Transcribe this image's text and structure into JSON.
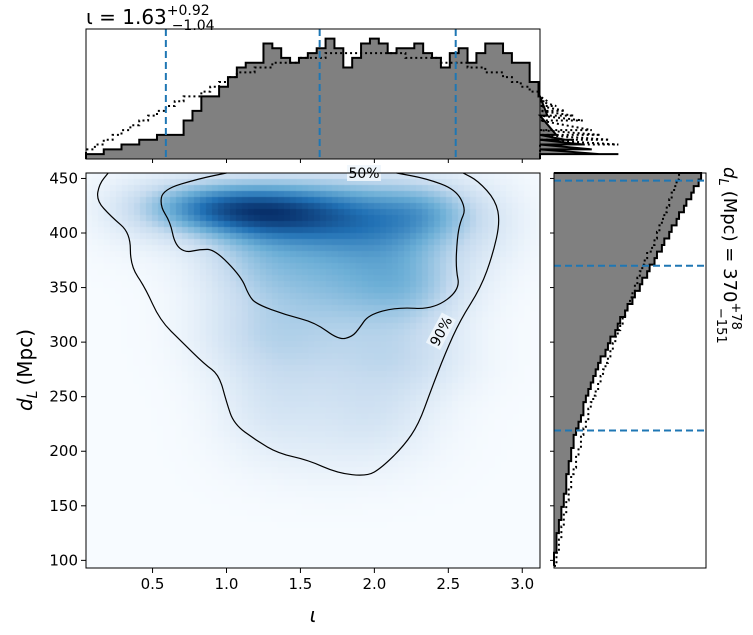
{
  "chart_data": {
    "type": "corner-plot",
    "main": {
      "type": "heatmap",
      "xlabel": "ι",
      "ylabel_main": "d",
      "ylabel_sub": "L",
      "ylabel_unit": "(Mpc)",
      "xlim": [
        0.05,
        3.12
      ],
      "ylim": [
        93,
        455
      ],
      "xticks": [
        0.5,
        1.0,
        1.5,
        2.0,
        2.5,
        3.0
      ],
      "xtick_labels": [
        "0.5",
        "1.0",
        "1.5",
        "2.0",
        "2.5",
        "3.0"
      ],
      "yticks": [
        100,
        150,
        200,
        250,
        300,
        350,
        400,
        450
      ],
      "ytick_labels": [
        "100",
        "150",
        "200",
        "250",
        "300",
        "350",
        "400",
        "450"
      ],
      "density_blobs": [
        {
          "x": 1.22,
          "y": 420,
          "sx": 0.38,
          "sy": 17,
          "w": 1.0
        },
        {
          "x": 1.65,
          "y": 415,
          "sx": 0.45,
          "sy": 22,
          "w": 0.6
        },
        {
          "x": 0.85,
          "y": 425,
          "sx": 0.3,
          "sy": 15,
          "w": 0.45
        },
        {
          "x": 2.05,
          "y": 405,
          "sx": 0.35,
          "sy": 28,
          "w": 0.5
        },
        {
          "x": 2.35,
          "y": 420,
          "sx": 0.22,
          "sy": 18,
          "w": 0.35
        },
        {
          "x": 1.25,
          "y": 375,
          "sx": 0.3,
          "sy": 25,
          "w": 0.35
        },
        {
          "x": 1.85,
          "y": 355,
          "sx": 0.4,
          "sy": 30,
          "w": 0.45
        },
        {
          "x": 2.25,
          "y": 350,
          "sx": 0.25,
          "sy": 25,
          "w": 0.3
        },
        {
          "x": 1.2,
          "y": 310,
          "sx": 0.28,
          "sy": 28,
          "w": 0.22
        },
        {
          "x": 1.6,
          "y": 290,
          "sx": 0.35,
          "sy": 35,
          "w": 0.22
        },
        {
          "x": 2.2,
          "y": 285,
          "sx": 0.3,
          "sy": 25,
          "w": 0.25
        },
        {
          "x": 1.3,
          "y": 240,
          "sx": 0.25,
          "sy": 30,
          "w": 0.14
        },
        {
          "x": 2.0,
          "y": 235,
          "sx": 0.28,
          "sy": 25,
          "w": 0.16
        },
        {
          "x": 1.75,
          "y": 200,
          "sx": 0.4,
          "sy": 25,
          "w": 0.07
        },
        {
          "x": 0.45,
          "y": 420,
          "sx": 0.25,
          "sy": 25,
          "w": 0.12
        },
        {
          "x": 2.75,
          "y": 410,
          "sx": 0.22,
          "sy": 30,
          "w": 0.12
        }
      ],
      "contours": [
        {
          "label": "50%",
          "label_at": [
            1.93,
            455
          ],
          "points": [
            [
              1.0,
              455
            ],
            [
              0.82,
              450
            ],
            [
              0.57,
              440
            ],
            [
              0.55,
              425
            ],
            [
              0.62,
              410
            ],
            [
              0.65,
              390
            ],
            [
              0.72,
              382
            ],
            [
              0.82,
              385
            ],
            [
              0.92,
              385
            ],
            [
              1.1,
              360
            ],
            [
              1.15,
              343
            ],
            [
              1.2,
              335
            ],
            [
              1.4,
              325
            ],
            [
              1.6,
              318
            ],
            [
              1.76,
              302
            ],
            [
              1.85,
              305
            ],
            [
              1.9,
              313
            ],
            [
              1.96,
              325
            ],
            [
              2.15,
              332
            ],
            [
              2.4,
              330
            ],
            [
              2.58,
              348
            ],
            [
              2.55,
              368
            ],
            [
              2.56,
              395
            ],
            [
              2.58,
              410
            ],
            [
              2.62,
              422
            ],
            [
              2.55,
              440
            ],
            [
              2.35,
              450
            ],
            [
              2.15,
              455
            ]
          ]
        },
        {
          "label": "90%",
          "label_at": [
            2.45,
            310
          ],
          "label_angle": -62,
          "points": [
            [
              0.2,
              455
            ],
            [
              0.14,
              445
            ],
            [
              0.12,
              430
            ],
            [
              0.22,
              415
            ],
            [
              0.35,
              400
            ],
            [
              0.35,
              370
            ],
            [
              0.45,
              350
            ],
            [
              0.55,
              320
            ],
            [
              0.7,
              300
            ],
            [
              0.85,
              280
            ],
            [
              0.95,
              270
            ],
            [
              1.0,
              245
            ],
            [
              1.05,
              225
            ],
            [
              1.2,
              210
            ],
            [
              1.35,
              198
            ],
            [
              1.55,
              192
            ],
            [
              1.75,
              180
            ],
            [
              1.95,
              177
            ],
            [
              2.05,
              185
            ],
            [
              2.2,
              205
            ],
            [
              2.3,
              225
            ],
            [
              2.38,
              255
            ],
            [
              2.48,
              290
            ],
            [
              2.58,
              320
            ],
            [
              2.72,
              350
            ],
            [
              2.8,
              380
            ],
            [
              2.85,
              410
            ],
            [
              2.82,
              430
            ],
            [
              2.7,
              448
            ],
            [
              2.6,
              455
            ]
          ]
        }
      ]
    },
    "top_histogram": {
      "title_main": "ι = 1.63",
      "title_sup": "+0.92",
      "title_sub": "−1.04",
      "median": 1.63,
      "lower": 0.59,
      "upper": 2.55,
      "bin_start": 0.05,
      "bin_width": 0.06,
      "posterior": [
        1,
        1,
        2,
        2,
        3,
        3,
        4,
        4,
        5,
        5,
        5,
        8,
        10,
        13,
        13,
        15,
        17,
        19,
        20,
        20,
        24,
        23,
        21,
        20,
        21,
        22,
        23,
        25,
        23,
        19,
        21,
        24,
        25,
        24,
        22,
        23,
        23,
        24,
        22,
        21,
        19,
        22,
        23,
        20,
        22,
        24,
        24,
        22,
        20,
        20,
        16,
        13,
        9,
        5,
        4,
        4,
        3,
        2,
        1,
        1,
        1
      ],
      "prior": [
        2,
        3,
        4,
        5,
        6,
        7,
        8,
        9,
        10,
        11,
        12,
        13,
        13,
        14,
        15,
        16,
        17,
        18,
        18,
        19,
        19,
        20,
        20,
        20,
        21,
        21,
        21,
        22,
        22,
        22,
        22,
        22,
        22,
        22,
        22,
        22,
        21,
        21,
        21,
        21,
        20,
        20,
        20,
        19,
        19,
        18,
        18,
        17,
        16,
        15,
        14,
        13,
        12,
        11,
        10,
        9,
        8,
        6,
        5,
        4,
        3
      ],
      "ylim": [
        0,
        27
      ]
    },
    "right_histogram": {
      "label_main": "d",
      "label_sub": "L",
      "label_rest": "(Mpc) = 370",
      "label_sup": "+78",
      "label_low": "−151",
      "median": 370,
      "lower": 219,
      "upper": 448,
      "bin_start": 95,
      "bin_width": 6,
      "posterior": [
        0,
        0,
        1,
        1,
        1,
        2,
        2,
        3,
        3,
        4,
        4,
        5,
        5,
        5,
        6,
        6,
        7,
        7,
        8,
        8,
        9,
        10,
        11,
        12,
        12,
        13,
        14,
        15,
        16,
        17,
        18,
        19,
        21,
        22,
        23,
        25,
        26,
        27,
        29,
        30,
        32,
        33,
        35,
        36,
        38,
        39,
        41,
        42,
        44,
        45,
        47,
        48,
        50,
        51,
        53,
        54,
        56,
        57,
        59,
        60
      ],
      "prior": [
        1,
        1,
        2,
        2,
        3,
        3,
        4,
        4,
        5,
        5,
        6,
        6,
        7,
        7,
        8,
        9,
        9,
        10,
        11,
        11,
        12,
        13,
        14,
        14,
        15,
        16,
        17,
        18,
        19,
        20,
        21,
        22,
        23,
        24,
        25,
        26,
        27,
        28,
        29,
        30,
        31,
        32,
        33,
        34,
        35,
        36,
        37,
        38,
        40,
        41,
        42,
        43,
        44,
        45,
        46,
        47,
        48,
        49,
        50,
        51
      ],
      "xlim": [
        0,
        62
      ]
    },
    "colors": {
      "hist_fill": "#808080",
      "hist_line": "#000000",
      "dashed": "#1f77b4",
      "cmap_low": "#f7fbff",
      "cmap_high": "#08306b"
    }
  }
}
